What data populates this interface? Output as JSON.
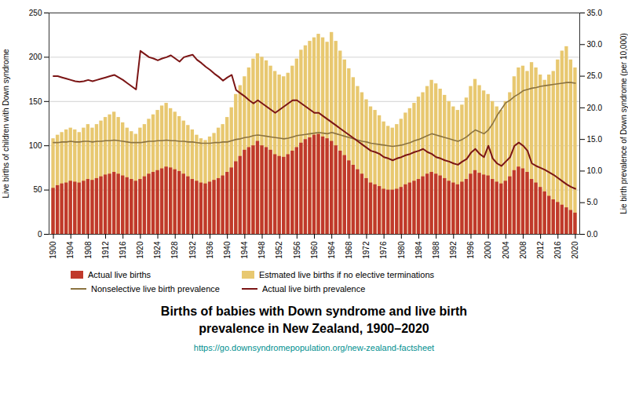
{
  "chart_data": {
    "type": "bar",
    "title": "Births of babies with Down syndrome and live birth\nprevalence in New Zealand, 1900–2020",
    "ylabel": "Live births of children with Down syndrome",
    "y2label": "Lie birth prevalence of Down syndrome (per 10,000)",
    "annotations": [
      "https://go.downsyndromepopulation.org/new-zealand-factsheet"
    ],
    "x": [
      1900,
      1901,
      1902,
      1903,
      1904,
      1905,
      1906,
      1907,
      1908,
      1909,
      1910,
      1911,
      1912,
      1913,
      1914,
      1915,
      1916,
      1917,
      1918,
      1919,
      1920,
      1921,
      1922,
      1923,
      1924,
      1925,
      1926,
      1927,
      1928,
      1929,
      1930,
      1931,
      1932,
      1933,
      1934,
      1935,
      1936,
      1937,
      1938,
      1939,
      1940,
      1941,
      1942,
      1943,
      1944,
      1945,
      1946,
      1947,
      1948,
      1949,
      1950,
      1951,
      1952,
      1953,
      1954,
      1955,
      1956,
      1957,
      1958,
      1959,
      1960,
      1961,
      1962,
      1963,
      1964,
      1965,
      1966,
      1967,
      1968,
      1969,
      1970,
      1971,
      1972,
      1973,
      1974,
      1975,
      1976,
      1977,
      1978,
      1979,
      1980,
      1981,
      1982,
      1983,
      1984,
      1985,
      1986,
      1987,
      1988,
      1989,
      1990,
      1991,
      1992,
      1993,
      1994,
      1995,
      1996,
      1997,
      1998,
      1999,
      2000,
      2001,
      2002,
      2003,
      2004,
      2005,
      2006,
      2007,
      2008,
      2009,
      2010,
      2011,
      2012,
      2013,
      2014,
      2015,
      2016,
      2017,
      2018,
      2019,
      2020
    ],
    "series": [
      {
        "name": "Actual live births",
        "type": "bar",
        "color": "#c0392b",
        "values": [
          52,
          55,
          57,
          58,
          60,
          59,
          58,
          60,
          62,
          61,
          63,
          65,
          67,
          68,
          70,
          68,
          66,
          64,
          62,
          60,
          62,
          65,
          68,
          70,
          72,
          74,
          76,
          75,
          73,
          71,
          68,
          65,
          62,
          60,
          58,
          57,
          59,
          61,
          63,
          66,
          70,
          75,
          82,
          88,
          95,
          98,
          100,
          105,
          100,
          98,
          95,
          90,
          88,
          87,
          90,
          94,
          98,
          103,
          107,
          109,
          112,
          113,
          110,
          108,
          105,
          100,
          94,
          89,
          83,
          78,
          73,
          68,
          63,
          58,
          56,
          54,
          51,
          50,
          50,
          51,
          53,
          56,
          58,
          60,
          62,
          65,
          68,
          70,
          68,
          66,
          63,
          60,
          58,
          56,
          59,
          62,
          68,
          72,
          69,
          67,
          66,
          62,
          59,
          57,
          60,
          65,
          72,
          76,
          74,
          70,
          62,
          58,
          53,
          48,
          43,
          39,
          36,
          33,
          30,
          27,
          24
        ]
      },
      {
        "name": "Estmated live births if no elective terminations",
        "type": "bar",
        "color": "#e8c870",
        "values": [
          108,
          112,
          115,
          118,
          120,
          118,
          115,
          120,
          124,
          120,
          124,
          128,
          132,
          135,
          138,
          132,
          126,
          120,
          116,
          113,
          120,
          124,
          130,
          135,
          140,
          145,
          148,
          142,
          138,
          133,
          128,
          123,
          118,
          112,
          108,
          106,
          110,
          114,
          120,
          124,
          132,
          143,
          158,
          168,
          178,
          188,
          198,
          204,
          200,
          196,
          190,
          184,
          180,
          178,
          182,
          190,
          198,
          208,
          213,
          218,
          222,
          226,
          222,
          217,
          228,
          218,
          207,
          197,
          187,
          177,
          167,
          160,
          152,
          144,
          140,
          134,
          127,
          122,
          120,
          124,
          130,
          137,
          142,
          148,
          155,
          160,
          167,
          174,
          170,
          164,
          157,
          150,
          144,
          140,
          146,
          154,
          167,
          175,
          168,
          162,
          158,
          150,
          144,
          140,
          150,
          160,
          178,
          188,
          190,
          184,
          194,
          188,
          180,
          174,
          180,
          184,
          197,
          207,
          212,
          197,
          188
        ]
      },
      {
        "name": "Nonselective live birth prevalence",
        "type": "line",
        "axis": "y2",
        "color": "#8B7340",
        "values": [
          14.5,
          14.5,
          14.6,
          14.6,
          14.7,
          14.6,
          14.6,
          14.7,
          14.7,
          14.6,
          14.7,
          14.7,
          14.8,
          14.8,
          14.9,
          14.8,
          14.7,
          14.6,
          14.5,
          14.5,
          14.5,
          14.6,
          14.7,
          14.7,
          14.8,
          14.8,
          14.9,
          14.8,
          14.8,
          14.7,
          14.7,
          14.6,
          14.6,
          14.5,
          14.4,
          14.4,
          14.4,
          14.5,
          14.5,
          14.6,
          14.6,
          14.8,
          15.0,
          15.1,
          15.3,
          15.4,
          15.6,
          15.7,
          15.6,
          15.5,
          15.4,
          15.3,
          15.2,
          15.1,
          15.2,
          15.4,
          15.6,
          15.7,
          15.8,
          15.9,
          16.0,
          16.1,
          16.0,
          15.9,
          16.1,
          15.9,
          15.7,
          15.5,
          15.3,
          15.1,
          14.9,
          14.7,
          14.6,
          14.4,
          14.3,
          14.2,
          14.1,
          14.0,
          13.9,
          14.0,
          14.1,
          14.3,
          14.5,
          14.8,
          15.0,
          15.3,
          15.6,
          15.9,
          15.7,
          15.5,
          15.3,
          15.1,
          14.9,
          14.7,
          15.0,
          15.4,
          16.0,
          16.5,
          16.2,
          15.9,
          16.5,
          17.5,
          18.8,
          19.8,
          20.8,
          21.2,
          21.8,
          22.2,
          22.7,
          22.9,
          23.1,
          23.2,
          23.4,
          23.5,
          23.6,
          23.7,
          23.8,
          23.9,
          24.0,
          24.0,
          23.9
        ]
      },
      {
        "name": "Actual live birth prevalence",
        "type": "line",
        "axis": "y2",
        "color": "#7B1515",
        "values": [
          25.0,
          25.0,
          24.8,
          24.6,
          24.4,
          24.2,
          24.1,
          24.2,
          24.4,
          24.2,
          24.4,
          24.6,
          24.8,
          25.0,
          25.2,
          24.8,
          24.4,
          23.9,
          23.4,
          22.9,
          29.0,
          28.5,
          28.0,
          27.8,
          27.5,
          27.8,
          28.0,
          28.3,
          27.8,
          27.3,
          28.0,
          28.2,
          28.4,
          27.6,
          27.1,
          26.5,
          26.0,
          25.4,
          24.9,
          24.3,
          24.8,
          25.2,
          22.8,
          22.3,
          21.8,
          21.2,
          20.7,
          21.2,
          20.7,
          20.2,
          19.7,
          19.2,
          19.7,
          20.2,
          20.7,
          21.2,
          21.2,
          20.7,
          20.2,
          19.7,
          19.2,
          19.2,
          18.7,
          18.2,
          17.7,
          17.2,
          16.7,
          16.2,
          15.7,
          15.2,
          14.7,
          14.2,
          13.7,
          13.2,
          13.0,
          12.7,
          12.2,
          12.0,
          11.7,
          12.0,
          12.2,
          12.5,
          12.7,
          13.0,
          13.2,
          13.5,
          13.0,
          12.7,
          12.2,
          12.0,
          11.7,
          11.5,
          11.2,
          11.0,
          11.5,
          11.9,
          12.9,
          13.5,
          12.7,
          12.2,
          14.0,
          12.0,
          11.2,
          10.8,
          11.5,
          12.2,
          14.0,
          14.5,
          14.0,
          13.2,
          11.2,
          10.8,
          10.5,
          10.2,
          9.8,
          9.4,
          8.9,
          8.4,
          7.9,
          7.5,
          7.2
        ]
      }
    ],
    "xlim": [
      1899,
      2021
    ],
    "xticks": [
      1900,
      1904,
      1908,
      1912,
      1916,
      1920,
      1924,
      1928,
      1932,
      1936,
      1940,
      1944,
      1948,
      1952,
      1956,
      1960,
      1964,
      1968,
      1972,
      1976,
      1980,
      1984,
      1988,
      1992,
      1996,
      2000,
      2004,
      2008,
      2012,
      2016,
      2020
    ],
    "ylim": [
      0,
      250
    ],
    "yticks": [
      0,
      50,
      100,
      150,
      200,
      250
    ],
    "y2lim": [
      0,
      35.0
    ],
    "y2ticks": [
      {
        "value": 0,
        "label": "0.0"
      },
      {
        "value": 5,
        "label": "5.0"
      },
      {
        "value": 10,
        "label": "10.0"
      },
      {
        "value": 15,
        "label": "15.0"
      },
      {
        "value": 20,
        "label": "20.0"
      },
      {
        "value": 25,
        "label": "25.0"
      },
      {
        "value": 30,
        "label": "30.0"
      },
      {
        "value": 35,
        "label": "35.0"
      }
    ],
    "grid": true,
    "legend": "bottom"
  }
}
